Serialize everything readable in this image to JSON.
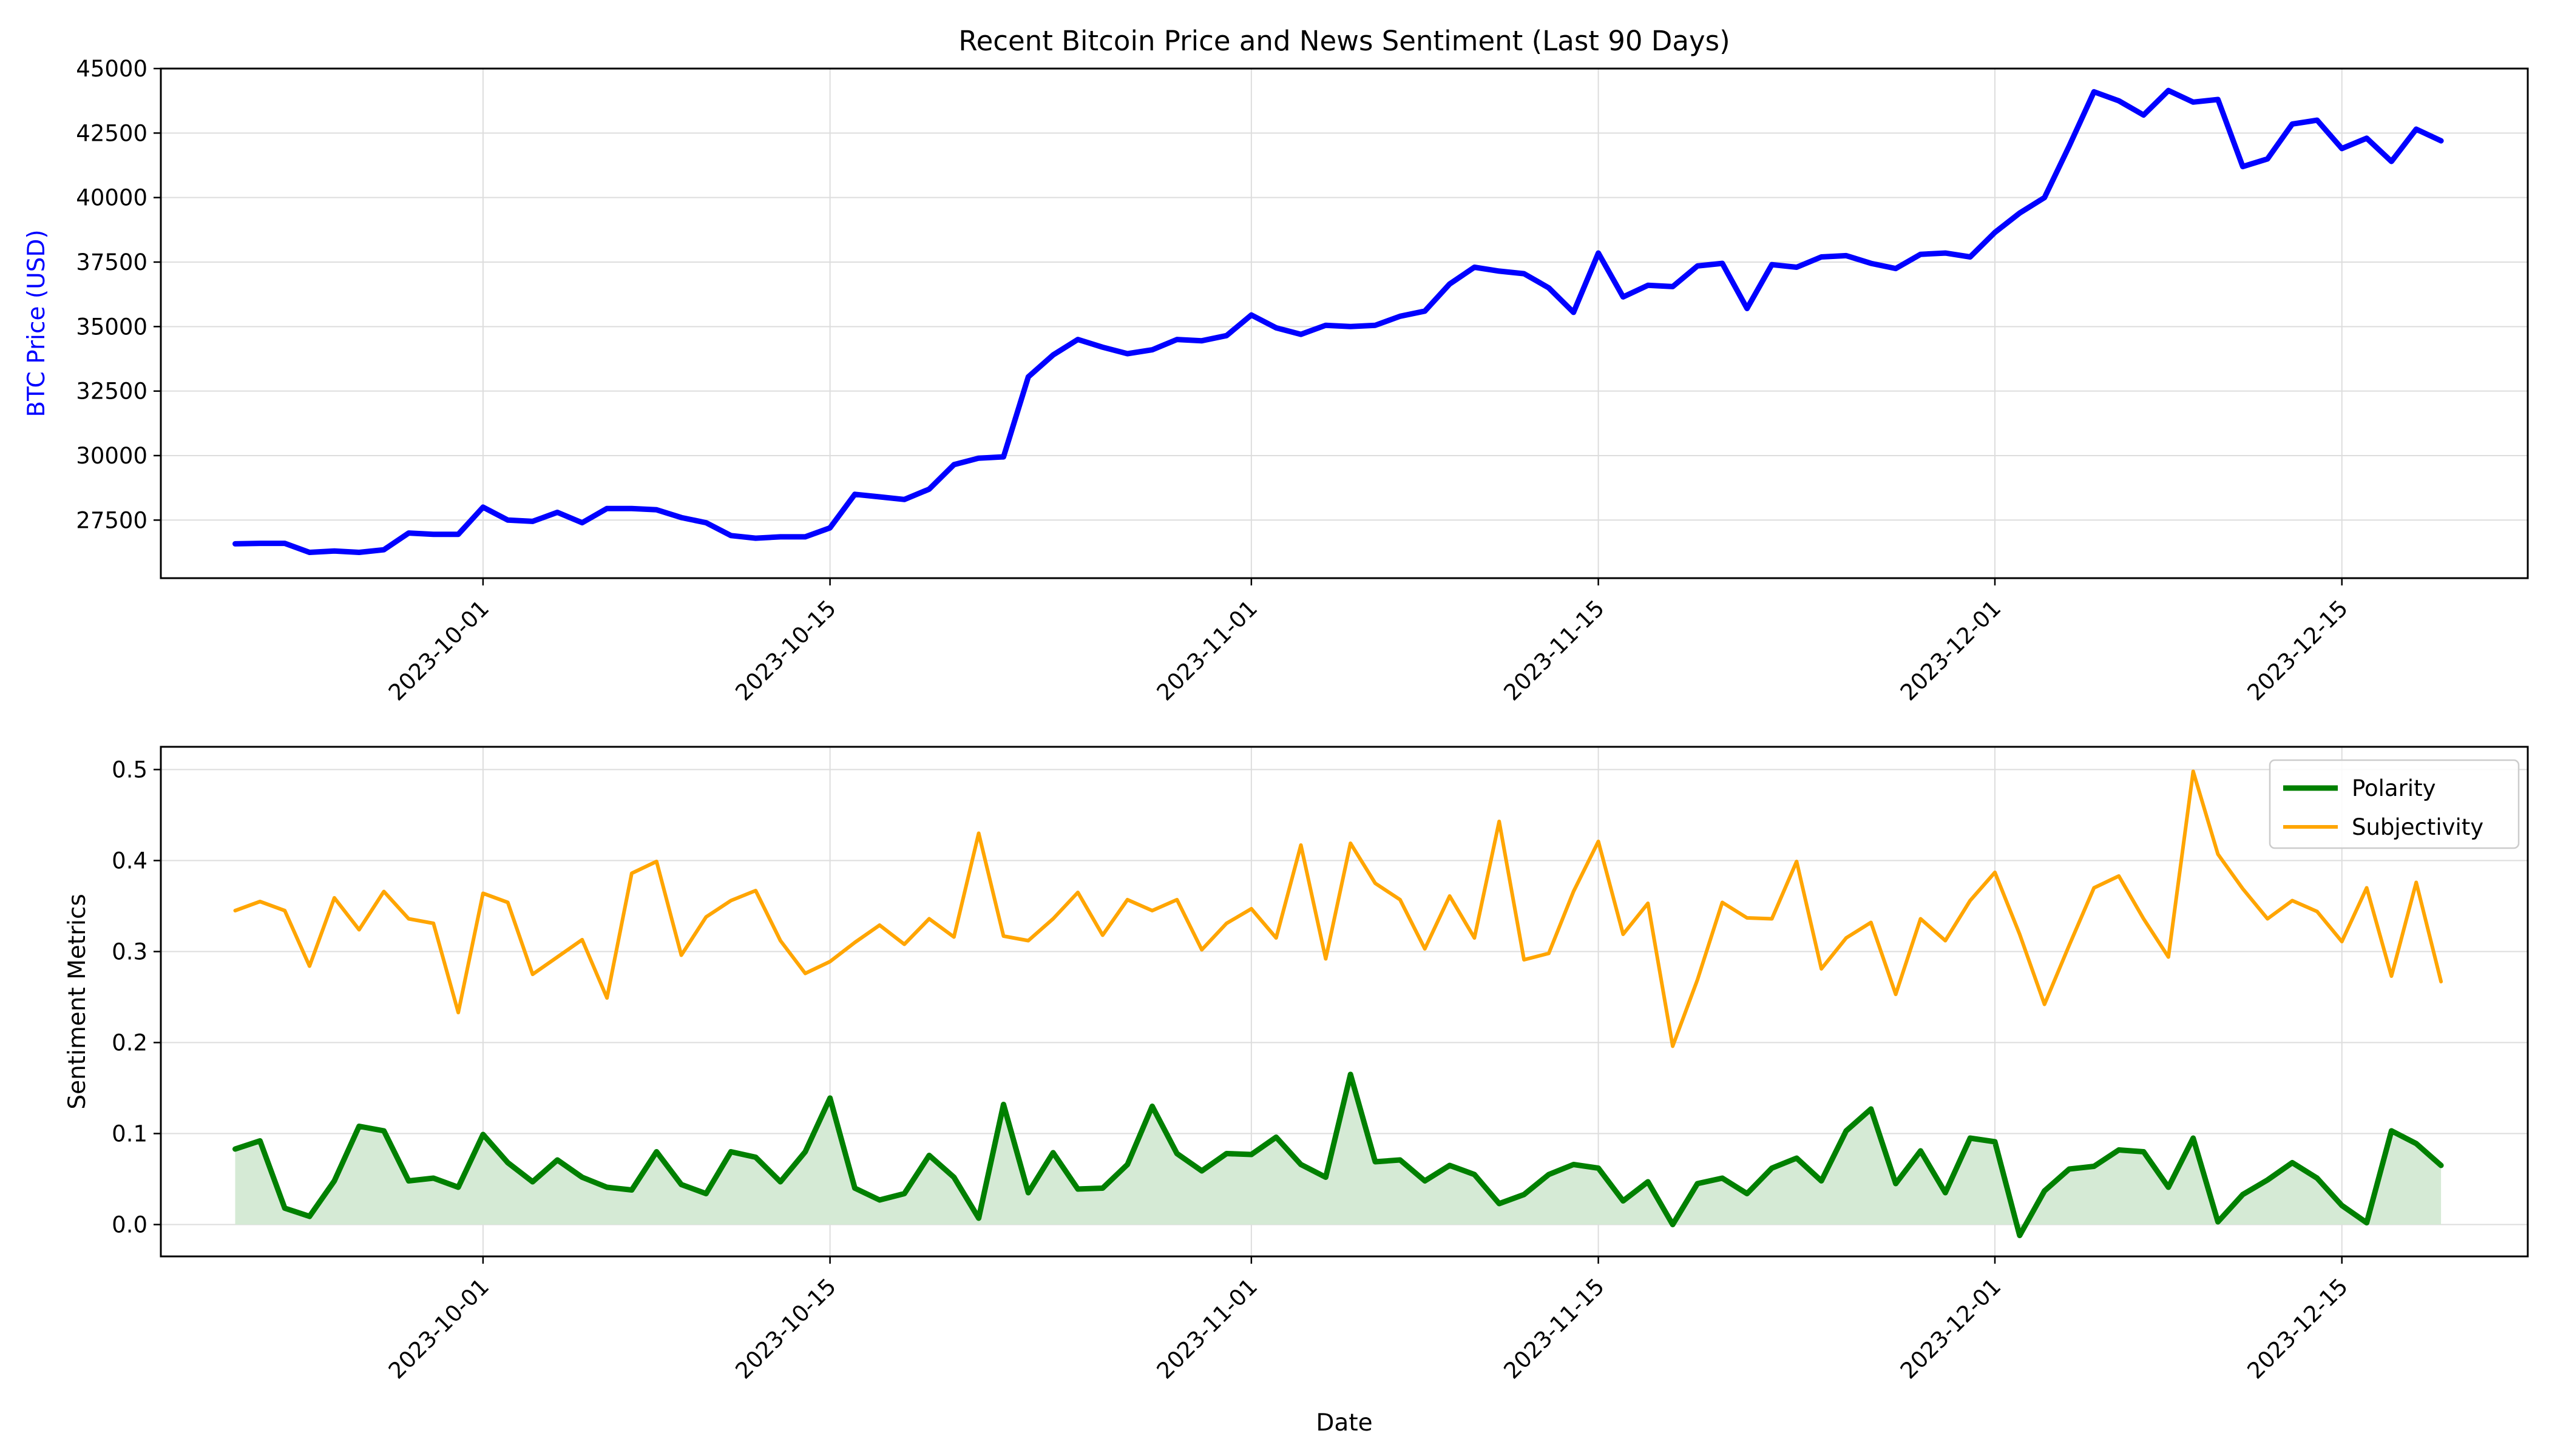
{
  "chart_data": [
    {
      "type": "line",
      "title": "Recent Bitcoin Price and News Sentiment (Last 90 Days)",
      "xlabel": "",
      "ylabel": "BTC Price (USD)",
      "ylim": [
        25250,
        45000
      ],
      "yticks": [
        27500,
        30000,
        32500,
        35000,
        37500,
        40000,
        42500,
        45000
      ],
      "x_start": "2023-09-21",
      "x_step_days": 1,
      "xticks": [
        "2023-10-01",
        "2023-10-15",
        "2023-11-01",
        "2023-11-15",
        "2023-12-01",
        "2023-12-15"
      ],
      "grid": true,
      "series": [
        {
          "name": "",
          "color": "#0000ff",
          "values": [
            26580,
            26600,
            26600,
            26250,
            26300,
            26250,
            26350,
            27000,
            26950,
            26950,
            28000,
            27500,
            27450,
            27800,
            27400,
            27950,
            27950,
            27900,
            27600,
            27400,
            26900,
            26800,
            26850,
            26850,
            27200,
            28500,
            28400,
            28300,
            28700,
            29650,
            29900,
            29950,
            33050,
            33900,
            34500,
            34200,
            33950,
            34100,
            34500,
            34450,
            34650,
            35450,
            34950,
            34700,
            35050,
            35000,
            35050,
            35400,
            35600,
            36650,
            37300,
            37150,
            37050,
            36500,
            35550,
            37850,
            36150,
            36600,
            36550,
            37350,
            37450,
            35700,
            37400,
            37300,
            37700,
            37750,
            37450,
            37250,
            37800,
            37850,
            37700,
            38650,
            39400,
            40000,
            42000,
            44100,
            43750,
            43200,
            44150,
            43700,
            43800,
            41200,
            41500,
            42850,
            43000,
            41900,
            42300,
            41400,
            42650,
            42200
          ]
        }
      ]
    },
    {
      "type": "area",
      "title": "",
      "xlabel": "Date",
      "ylabel": "Sentiment Metrics",
      "ylim": [
        -0.035,
        0.525
      ],
      "yticks": [
        0.0,
        0.1,
        0.2,
        0.3,
        0.4,
        0.5
      ],
      "x_start": "2023-09-21",
      "x_step_days": 1,
      "xticks": [
        "2023-10-01",
        "2023-10-15",
        "2023-11-01",
        "2023-11-15",
        "2023-12-01",
        "2023-12-15"
      ],
      "grid": true,
      "legend": "top-right",
      "series": [
        {
          "name": "Polarity",
          "color": "#008000",
          "fill": "#d5ead5",
          "values": [
            0.083,
            0.092,
            0.018,
            0.009,
            0.048,
            0.108,
            0.103,
            0.048,
            0.051,
            0.041,
            0.099,
            0.068,
            0.047,
            0.071,
            0.052,
            0.041,
            0.038,
            0.08,
            0.044,
            0.034,
            0.08,
            0.074,
            0.047,
            0.08,
            0.139,
            0.04,
            0.027,
            0.034,
            0.076,
            0.052,
            0.007,
            0.132,
            0.035,
            0.079,
            0.039,
            0.04,
            0.066,
            0.13,
            0.078,
            0.059,
            0.078,
            0.077,
            0.096,
            0.066,
            0.052,
            0.165,
            0.069,
            0.071,
            0.048,
            0.065,
            0.055,
            0.023,
            0.033,
            0.055,
            0.066,
            0.062,
            0.026,
            0.047,
            0.0,
            0.045,
            0.051,
            0.034,
            0.062,
            0.073,
            0.048,
            0.103,
            0.127,
            0.045,
            0.081,
            0.035,
            0.095,
            0.091,
            -0.012,
            0.037,
            0.061,
            0.064,
            0.082,
            0.08,
            0.041,
            0.095,
            0.003,
            0.033,
            0.049,
            0.068,
            0.051,
            0.021,
            0.002,
            0.103,
            0.089,
            0.065
          ]
        },
        {
          "name": "Subjectivity",
          "color": "#ffa500",
          "values": [
            0.345,
            0.355,
            0.345,
            0.284,
            0.359,
            0.324,
            0.366,
            0.336,
            0.331,
            0.233,
            0.364,
            0.354,
            0.275,
            0.294,
            0.313,
            0.249,
            0.386,
            0.399,
            0.296,
            0.338,
            0.356,
            0.367,
            0.312,
            0.276,
            0.289,
            0.31,
            0.329,
            0.308,
            0.336,
            0.316,
            0.43,
            0.317,
            0.312,
            0.336,
            0.365,
            0.318,
            0.357,
            0.345,
            0.357,
            0.302,
            0.331,
            0.347,
            0.315,
            0.417,
            0.292,
            0.419,
            0.375,
            0.357,
            0.303,
            0.361,
            0.315,
            0.443,
            0.291,
            0.298,
            0.366,
            0.421,
            0.319,
            0.353,
            0.196,
            0.269,
            0.354,
            0.337,
            0.336,
            0.399,
            0.281,
            0.315,
            0.332,
            0.253,
            0.336,
            0.312,
            0.356,
            0.387,
            0.319,
            0.242,
            0.307,
            0.37,
            0.383,
            0.336,
            0.294,
            0.498,
            0.407,
            0.369,
            0.336,
            0.356,
            0.344,
            0.311,
            0.37,
            0.273,
            0.376,
            0.267
          ]
        }
      ]
    }
  ]
}
